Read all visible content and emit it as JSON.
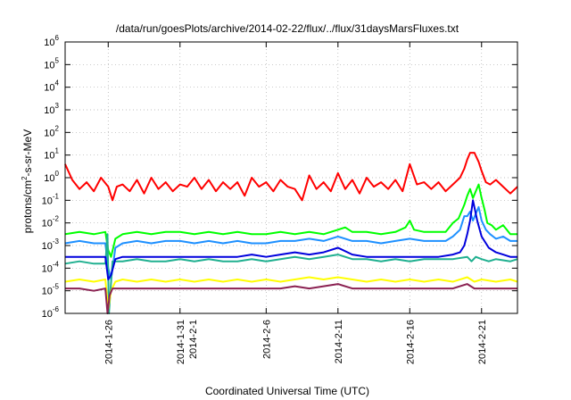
{
  "chart_data": {
    "type": "line",
    "title": "/data/run/goesPlots/archive/2014-02-22/flux/../flux/31daysMarsFluxes.txt",
    "xlabel": "Coordinated Universal Time (UTC)",
    "ylabel": {
      "base": "protons/cm",
      "sup": "2",
      "rest": "-s-sr-MeV"
    },
    "yscale": "log",
    "ylim": [
      -6,
      6
    ],
    "xlim": [
      23.0,
      54.5
    ],
    "grid": true,
    "legend": "none",
    "x_tick_labels": [
      {
        "x": 26,
        "lines": [
          "2014-1-26"
        ]
      },
      {
        "x": 31,
        "lines": [
          "2014-1-31",
          "2014-2-1"
        ]
      },
      {
        "x": 37,
        "lines": [
          "2014-2-6"
        ]
      },
      {
        "x": 42,
        "lines": [
          "2014-2-11"
        ]
      },
      {
        "x": 47,
        "lines": [
          "2014-2-16"
        ]
      },
      {
        "x": 52,
        "lines": [
          "2014-2-21"
        ]
      }
    ],
    "y_tick_exponents": [
      -6,
      -5,
      -4,
      -3,
      -2,
      -1,
      0,
      1,
      2,
      3,
      4,
      5,
      6
    ],
    "series": [
      {
        "color": "#ff0000",
        "x": [
          23.0,
          23.5,
          24.0,
          24.5,
          25.0,
          25.5,
          26.0,
          26.3,
          26.6,
          27.0,
          27.5,
          28.0,
          28.5,
          29.0,
          29.5,
          30.0,
          30.5,
          31.0,
          31.5,
          32.0,
          32.5,
          33.0,
          33.5,
          34.0,
          34.5,
          35.0,
          35.5,
          36.0,
          36.5,
          37.0,
          37.5,
          38.0,
          38.5,
          39.0,
          39.5,
          40.0,
          40.5,
          41.0,
          41.5,
          42.0,
          42.5,
          43.0,
          43.5,
          44.0,
          44.5,
          45.0,
          45.5,
          46.0,
          46.5,
          47.0,
          47.5,
          48.0,
          48.5,
          49.0,
          49.5,
          50.0,
          50.5,
          50.8,
          51.0,
          51.2,
          51.5,
          51.8,
          52.0,
          52.3,
          52.6,
          53.0,
          53.5,
          54.0,
          54.5
        ],
        "y": [
          0.6,
          -0.1,
          -0.5,
          -0.2,
          -0.6,
          0.0,
          -0.4,
          -1.0,
          -0.4,
          -0.3,
          -0.6,
          -0.1,
          -0.7,
          0.0,
          -0.5,
          -0.2,
          -0.6,
          -0.3,
          -0.4,
          0.0,
          -0.5,
          -0.1,
          -0.6,
          -0.2,
          -0.5,
          -0.2,
          -0.8,
          0.0,
          -0.4,
          -0.2,
          -0.6,
          -0.1,
          -0.4,
          -0.5,
          -1.0,
          0.1,
          -0.5,
          -0.2,
          -0.6,
          0.2,
          -0.5,
          -0.1,
          -0.7,
          0.0,
          -0.4,
          -0.2,
          -0.5,
          -0.1,
          -0.6,
          0.6,
          -0.3,
          -0.2,
          -0.5,
          -0.2,
          -0.6,
          -0.3,
          0.0,
          0.4,
          0.8,
          1.1,
          1.1,
          0.7,
          0.3,
          -0.2,
          -0.3,
          -0.1,
          -0.4,
          -0.7,
          -0.4
        ]
      },
      {
        "color": "#00ff00",
        "x": [
          23.0,
          24.0,
          25.0,
          25.8,
          26.0,
          26.2,
          26.5,
          27.0,
          28.0,
          29.0,
          30.0,
          31.0,
          32.0,
          33.0,
          34.0,
          35.0,
          36.0,
          37.0,
          38.0,
          39.0,
          40.0,
          41.0,
          42.0,
          42.5,
          43.0,
          44.0,
          45.0,
          46.0,
          46.7,
          47.0,
          47.3,
          48.0,
          49.0,
          49.5,
          50.0,
          50.4,
          50.8,
          51.0,
          51.2,
          51.4,
          51.6,
          51.8,
          52.0,
          52.2,
          52.4,
          52.7,
          53.0,
          53.5,
          54.0,
          54.5
        ],
        "y": [
          -2.5,
          -2.4,
          -2.5,
          -2.4,
          -3.2,
          -3.5,
          -2.7,
          -2.5,
          -2.4,
          -2.5,
          -2.4,
          -2.4,
          -2.5,
          -2.4,
          -2.5,
          -2.4,
          -2.5,
          -2.5,
          -2.4,
          -2.5,
          -2.4,
          -2.5,
          -2.3,
          -2.2,
          -2.4,
          -2.4,
          -2.5,
          -2.4,
          -2.2,
          -1.9,
          -2.3,
          -2.4,
          -2.4,
          -2.4,
          -2.0,
          -1.8,
          -1.2,
          -0.8,
          -0.5,
          -0.9,
          -0.6,
          -0.3,
          -0.9,
          -1.4,
          -2.0,
          -2.1,
          -2.3,
          -2.1,
          -2.5,
          -2.5
        ]
      },
      {
        "color": "#1e90ff",
        "x": [
          23.0,
          24.0,
          25.0,
          25.8,
          26.0,
          26.2,
          26.5,
          27.0,
          28.0,
          29.0,
          30.0,
          31.0,
          32.0,
          33.0,
          34.0,
          35.0,
          36.0,
          37.0,
          38.0,
          39.0,
          40.0,
          41.0,
          42.0,
          43.0,
          44.0,
          45.0,
          46.0,
          47.0,
          48.0,
          49.0,
          49.5,
          50.0,
          50.5,
          50.8,
          51.0,
          51.2,
          51.4,
          51.6,
          51.8,
          52.0,
          52.3,
          52.6,
          53.0,
          53.5,
          54.0,
          54.5
        ],
        "y": [
          -2.9,
          -2.8,
          -2.9,
          -2.9,
          -4.0,
          -4.5,
          -3.1,
          -2.9,
          -2.8,
          -2.9,
          -2.8,
          -2.8,
          -2.9,
          -2.8,
          -2.9,
          -2.8,
          -2.9,
          -2.9,
          -2.8,
          -2.8,
          -2.7,
          -2.8,
          -2.6,
          -2.8,
          -2.8,
          -2.9,
          -2.8,
          -2.7,
          -2.8,
          -2.8,
          -2.8,
          -2.6,
          -2.3,
          -1.7,
          -1.7,
          -1.5,
          -1.9,
          -1.6,
          -1.3,
          -1.9,
          -2.3,
          -2.5,
          -2.7,
          -2.6,
          -2.8,
          -2.8
        ]
      },
      {
        "color": "#20b090",
        "x": [
          23.0,
          24.0,
          25.0,
          25.8,
          25.95,
          26.05,
          26.3,
          27.0,
          28.0,
          29.0,
          30.0,
          31.0,
          32.0,
          33.0,
          34.0,
          35.0,
          36.0,
          37.0,
          38.0,
          39.0,
          40.0,
          41.0,
          42.0,
          43.0,
          44.0,
          45.0,
          46.0,
          47.0,
          48.0,
          49.0,
          50.0,
          51.0,
          51.3,
          51.6,
          52.0,
          52.5,
          53.0,
          54.0,
          54.5
        ],
        "y": [
          -3.8,
          -3.7,
          -3.8,
          -3.8,
          -2.5,
          -6.0,
          -3.7,
          -3.7,
          -3.6,
          -3.7,
          -3.7,
          -3.6,
          -3.7,
          -3.6,
          -3.7,
          -3.7,
          -3.6,
          -3.7,
          -3.6,
          -3.5,
          -3.6,
          -3.5,
          -3.4,
          -3.6,
          -3.6,
          -3.7,
          -3.6,
          -3.7,
          -3.6,
          -3.6,
          -3.6,
          -3.5,
          -3.7,
          -3.5,
          -3.6,
          -3.7,
          -3.6,
          -3.7,
          -3.6
        ]
      },
      {
        "color": "#0000dd",
        "x": [
          23.0,
          24.0,
          25.0,
          25.8,
          26.0,
          26.2,
          26.5,
          27.0,
          28.0,
          29.0,
          30.0,
          31.0,
          32.0,
          33.0,
          34.0,
          35.0,
          36.0,
          37.0,
          38.0,
          39.0,
          40.0,
          41.0,
          42.0,
          43.0,
          44.0,
          45.0,
          46.0,
          47.0,
          48.0,
          49.0,
          50.0,
          50.5,
          50.8,
          51.0,
          51.2,
          51.4,
          51.7,
          52.0,
          52.5,
          53.0,
          53.5,
          54.0,
          54.5
        ],
        "y": [
          -3.5,
          -3.5,
          -3.5,
          -3.5,
          -4.5,
          -4.3,
          -3.6,
          -3.5,
          -3.5,
          -3.5,
          -3.5,
          -3.5,
          -3.5,
          -3.5,
          -3.5,
          -3.5,
          -3.4,
          -3.5,
          -3.4,
          -3.3,
          -3.4,
          -3.3,
          -3.1,
          -3.4,
          -3.5,
          -3.5,
          -3.5,
          -3.5,
          -3.5,
          -3.5,
          -3.4,
          -3.3,
          -3.0,
          -2.5,
          -1.9,
          -1.0,
          -1.9,
          -2.6,
          -3.1,
          -3.3,
          -3.4,
          -3.5,
          -3.5
        ]
      },
      {
        "color": "#ffff00",
        "x": [
          23.0,
          24.0,
          25.0,
          25.8,
          26.0,
          26.2,
          26.5,
          27.0,
          28.0,
          29.0,
          30.0,
          31.0,
          32.0,
          33.0,
          34.0,
          35.0,
          36.0,
          37.0,
          38.0,
          39.0,
          40.0,
          41.0,
          42.0,
          43.0,
          44.0,
          45.0,
          46.0,
          47.0,
          48.0,
          49.0,
          50.0,
          51.0,
          51.5,
          52.0,
          53.0,
          54.0,
          54.5
        ],
        "y": [
          -4.6,
          -4.5,
          -4.6,
          -4.5,
          -5.8,
          -5.0,
          -4.6,
          -4.5,
          -4.6,
          -4.5,
          -4.6,
          -4.5,
          -4.6,
          -4.5,
          -4.6,
          -4.5,
          -4.6,
          -4.5,
          -4.6,
          -4.5,
          -4.4,
          -4.5,
          -4.4,
          -4.5,
          -4.6,
          -4.5,
          -4.6,
          -4.5,
          -4.6,
          -4.5,
          -4.6,
          -4.4,
          -4.6,
          -4.5,
          -4.6,
          -4.5,
          -4.6
        ]
      },
      {
        "color": "#8b2252",
        "x": [
          23.0,
          24.0,
          25.0,
          25.8,
          25.95,
          26.1,
          26.3,
          27.0,
          28.0,
          29.0,
          30.0,
          31.0,
          32.0,
          33.0,
          34.0,
          35.0,
          36.0,
          37.0,
          38.0,
          39.0,
          40.0,
          41.0,
          42.0,
          43.0,
          44.0,
          45.0,
          46.0,
          47.0,
          48.0,
          49.0,
          50.0,
          51.0,
          51.5,
          52.0,
          53.0,
          54.0,
          54.5
        ],
        "y": [
          -4.9,
          -4.9,
          -5.0,
          -4.9,
          -6.0,
          -5.2,
          -4.9,
          -4.9,
          -4.9,
          -4.9,
          -4.9,
          -4.9,
          -4.9,
          -4.9,
          -4.9,
          -4.9,
          -4.9,
          -4.9,
          -4.9,
          -4.8,
          -4.9,
          -4.8,
          -4.7,
          -4.9,
          -4.9,
          -4.9,
          -4.9,
          -4.9,
          -4.9,
          -4.9,
          -4.9,
          -4.7,
          -4.9,
          -4.9,
          -4.9,
          -4.9,
          -4.9
        ]
      }
    ]
  }
}
